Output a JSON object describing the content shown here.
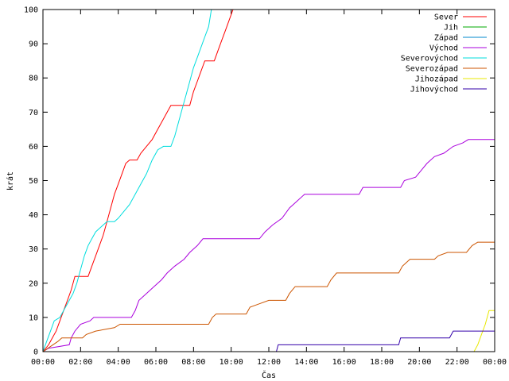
{
  "chart_data": {
    "type": "line",
    "title": "",
    "xlabel": "Čas",
    "ylabel": "krát",
    "xlim": [
      0,
      24
    ],
    "ylim": [
      0,
      100
    ],
    "grid": false,
    "legend_position": "top-right",
    "x_tick_labels": [
      "00:00",
      "02:00",
      "04:00",
      "06:00",
      "08:00",
      "10:00",
      "12:00",
      "14:00",
      "16:00",
      "18:00",
      "20:00",
      "22:00",
      "00:00"
    ],
    "y_ticks": [
      0,
      10,
      20,
      30,
      40,
      50,
      60,
      70,
      80,
      90,
      100
    ],
    "series": [
      {
        "name": "Sever",
        "color": "#ff0000",
        "points": [
          [
            0,
            0
          ],
          [
            0.3,
            2
          ],
          [
            0.5,
            4
          ],
          [
            0.7,
            6
          ],
          [
            0.9,
            9
          ],
          [
            1.1,
            12
          ],
          [
            1.3,
            15
          ],
          [
            1.5,
            18
          ],
          [
            1.7,
            22
          ],
          [
            2.4,
            22
          ],
          [
            2.6,
            25
          ],
          [
            2.8,
            28
          ],
          [
            3.0,
            31
          ],
          [
            3.2,
            34
          ],
          [
            3.4,
            38
          ],
          [
            3.6,
            42
          ],
          [
            3.8,
            46
          ],
          [
            4.0,
            49
          ],
          [
            4.2,
            52
          ],
          [
            4.4,
            55
          ],
          [
            4.6,
            56
          ],
          [
            5.0,
            56
          ],
          [
            5.2,
            58
          ],
          [
            5.5,
            60
          ],
          [
            5.8,
            62
          ],
          [
            6.1,
            65
          ],
          [
            6.4,
            68
          ],
          [
            6.6,
            70
          ],
          [
            6.8,
            72
          ],
          [
            7.8,
            72
          ],
          [
            8.0,
            76
          ],
          [
            8.2,
            79
          ],
          [
            8.4,
            82
          ],
          [
            8.6,
            85
          ],
          [
            9.1,
            85
          ],
          [
            9.3,
            88
          ],
          [
            9.5,
            91
          ],
          [
            9.7,
            94
          ],
          [
            9.9,
            97
          ],
          [
            10.1,
            100
          ]
        ]
      },
      {
        "name": "Jih",
        "color": "#00aa00",
        "points": []
      },
      {
        "name": "Západ",
        "color": "#0088cc",
        "points": []
      },
      {
        "name": "Východ",
        "color": "#aa00dd",
        "points": [
          [
            0,
            0
          ],
          [
            0.3,
            1
          ],
          [
            1.4,
            2
          ],
          [
            1.5,
            4
          ],
          [
            1.7,
            6
          ],
          [
            2.0,
            8
          ],
          [
            2.5,
            9
          ],
          [
            2.7,
            10
          ],
          [
            4.7,
            10
          ],
          [
            4.9,
            12
          ],
          [
            5.1,
            15
          ],
          [
            5.5,
            17
          ],
          [
            5.9,
            19
          ],
          [
            6.3,
            21
          ],
          [
            6.6,
            23
          ],
          [
            7.0,
            25
          ],
          [
            7.5,
            27
          ],
          [
            7.8,
            29
          ],
          [
            8.2,
            31
          ],
          [
            8.5,
            33
          ],
          [
            11.5,
            33
          ],
          [
            11.8,
            35
          ],
          [
            12.2,
            37
          ],
          [
            12.7,
            39
          ],
          [
            13.1,
            42
          ],
          [
            13.5,
            44
          ],
          [
            13.9,
            46
          ],
          [
            16.8,
            46
          ],
          [
            17.0,
            48
          ],
          [
            19.0,
            48
          ],
          [
            19.2,
            50
          ],
          [
            19.8,
            51
          ],
          [
            20.1,
            53
          ],
          [
            20.4,
            55
          ],
          [
            20.8,
            57
          ],
          [
            21.3,
            58
          ],
          [
            21.8,
            60
          ],
          [
            22.3,
            61
          ],
          [
            22.6,
            62
          ],
          [
            24,
            62
          ]
        ]
      },
      {
        "name": "Severovýchod",
        "color": "#00dddd",
        "points": [
          [
            0,
            0
          ],
          [
            0.2,
            3
          ],
          [
            0.4,
            6
          ],
          [
            0.6,
            9
          ],
          [
            0.9,
            10
          ],
          [
            1.1,
            12
          ],
          [
            1.4,
            15
          ],
          [
            1.6,
            17
          ],
          [
            1.8,
            20
          ],
          [
            2.0,
            24
          ],
          [
            2.2,
            28
          ],
          [
            2.4,
            31
          ],
          [
            2.6,
            33
          ],
          [
            2.8,
            35
          ],
          [
            3.0,
            36
          ],
          [
            3.2,
            37
          ],
          [
            3.4,
            38
          ],
          [
            3.8,
            38
          ],
          [
            4.0,
            39
          ],
          [
            4.3,
            41
          ],
          [
            4.6,
            43
          ],
          [
            4.9,
            46
          ],
          [
            5.2,
            49
          ],
          [
            5.5,
            52
          ],
          [
            5.8,
            56
          ],
          [
            6.1,
            59
          ],
          [
            6.4,
            60
          ],
          [
            6.8,
            60
          ],
          [
            7.0,
            63
          ],
          [
            7.2,
            67
          ],
          [
            7.4,
            71
          ],
          [
            7.6,
            75
          ],
          [
            7.8,
            79
          ],
          [
            8.0,
            83
          ],
          [
            8.2,
            86
          ],
          [
            8.4,
            89
          ],
          [
            8.6,
            92
          ],
          [
            8.8,
            95
          ],
          [
            8.95,
            100
          ]
        ]
      },
      {
        "name": "Severozápad",
        "color": "#cc5500",
        "points": [
          [
            0,
            0
          ],
          [
            0.8,
            3
          ],
          [
            1.0,
            4
          ],
          [
            2.1,
            4
          ],
          [
            2.3,
            5
          ],
          [
            2.8,
            6
          ],
          [
            3.8,
            7
          ],
          [
            4.1,
            8
          ],
          [
            8.8,
            8
          ],
          [
            9.0,
            10
          ],
          [
            9.2,
            11
          ],
          [
            10.8,
            11
          ],
          [
            11.0,
            13
          ],
          [
            11.5,
            14
          ],
          [
            12.0,
            15
          ],
          [
            12.9,
            15
          ],
          [
            13.1,
            17
          ],
          [
            13.4,
            19
          ],
          [
            15.1,
            19
          ],
          [
            15.3,
            21
          ],
          [
            15.6,
            23
          ],
          [
            18.9,
            23
          ],
          [
            19.1,
            25
          ],
          [
            19.5,
            27
          ],
          [
            20.8,
            27
          ],
          [
            21.0,
            28
          ],
          [
            21.5,
            29
          ],
          [
            22.5,
            29
          ],
          [
            22.8,
            31
          ],
          [
            23.1,
            32
          ],
          [
            24,
            32
          ]
        ]
      },
      {
        "name": "Jihozápad",
        "color": "#e8e800",
        "points": [
          [
            22.9,
            0
          ],
          [
            23.1,
            2
          ],
          [
            23.3,
            5
          ],
          [
            23.5,
            8
          ],
          [
            23.7,
            12
          ],
          [
            24,
            12
          ],
          [
            24,
            14
          ]
        ]
      },
      {
        "name": "Jihovýchod",
        "color": "#3300aa",
        "points": [
          [
            12.4,
            0
          ],
          [
            12.5,
            2
          ],
          [
            18.9,
            2
          ],
          [
            19.0,
            4
          ],
          [
            21.6,
            4
          ],
          [
            21.8,
            6
          ],
          [
            24,
            6
          ]
        ]
      }
    ]
  }
}
